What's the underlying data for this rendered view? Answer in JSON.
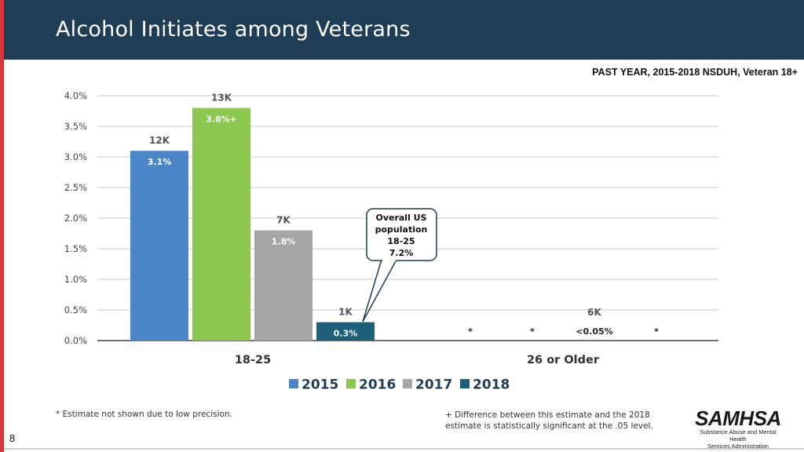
{
  "header": {
    "title": "Alcohol Initiates among Veterans",
    "subtitle": "PAST YEAR, 2015-2018 NSDUH, Veteran 18+"
  },
  "chart_data": {
    "type": "bar",
    "ylim": [
      0,
      4.0
    ],
    "yticks": [
      "0.0%",
      "0.5%",
      "1.0%",
      "1.5%",
      "2.0%",
      "2.5%",
      "3.0%",
      "3.5%",
      "4.0%"
    ],
    "ytick_values": [
      0,
      0.5,
      1.0,
      1.5,
      2.0,
      2.5,
      3.0,
      3.5,
      4.0
    ],
    "categories": [
      "18-25",
      "26 or Older"
    ],
    "series": [
      {
        "name": "2015",
        "color": "#4a86c8",
        "values": [
          3.1,
          null
        ],
        "pct_labels": [
          "3.1%",
          "*"
        ],
        "count_labels": [
          "12K",
          ""
        ]
      },
      {
        "name": "2016",
        "color": "#8cc84f",
        "values": [
          3.8,
          null
        ],
        "pct_labels": [
          "3.8%+",
          "*"
        ],
        "count_labels": [
          "13K",
          ""
        ]
      },
      {
        "name": "2017",
        "color": "#a6a6a6",
        "values": [
          1.8,
          0.0
        ],
        "pct_labels": [
          "1.8%",
          "<0.05%"
        ],
        "count_labels": [
          "7K",
          "6K"
        ]
      },
      {
        "name": "2018",
        "color": "#1e5f7a",
        "values": [
          0.3,
          null
        ],
        "pct_labels": [
          "0.3%",
          "*"
        ],
        "count_labels": [
          "1K",
          ""
        ]
      }
    ],
    "callout": {
      "lines": [
        "Overall US",
        "population",
        "18-25",
        "7.2%"
      ]
    }
  },
  "footnotes": {
    "left": "* Estimate not shown due to low precision.",
    "right": "+ Difference between this estimate and the 2018 estimate is statistically significant at the .05 level."
  },
  "page_number": "8",
  "logo": {
    "name": "SAMHSA",
    "line1": "Substance Abuse and Mental Health",
    "line2": "Services Administration"
  }
}
